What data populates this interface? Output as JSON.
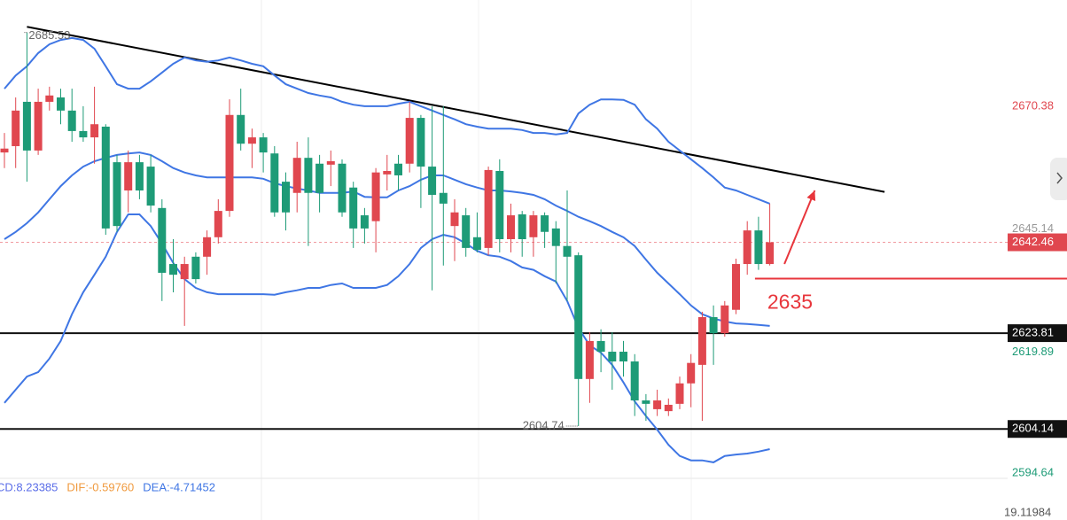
{
  "chart_data": {
    "type": "candlestick",
    "ylim": [
      2594.0,
      2692.2
    ],
    "up_color": "#e0474f",
    "down_color": "#1e9b77",
    "candles": {
      "open": [
        2660.9,
        2662.2,
        2671.3,
        2661.3,
        2671.3,
        2672.2,
        2669.5,
        2665.3,
        2664.0,
        2666.2,
        2658.9,
        2653.1,
        2658.9,
        2658.0,
        2649.5,
        2638.0,
        2634.9,
        2639.5,
        2639.5,
        2643.5,
        2648.9,
        2668.6,
        2662.7,
        2664.0,
        2660.7,
        2654.9,
        2652.6,
        2659.8,
        2658.6,
        2658.4,
        2658.6,
        2653.7,
        2648.0,
        2646.8,
        2656.4,
        2658.6,
        2658.6,
        2668.0,
        2658.0,
        2652.6,
        2645.8,
        2648.0,
        2643.5,
        2641.3,
        2657.1,
        2643.1,
        2648.2,
        2643.5,
        2648.0,
        2645.3,
        2641.7,
        2639.8,
        2614.4,
        2622.2,
        2620.0,
        2620.0,
        2618.0,
        2610.0,
        2608.2,
        2607.8,
        2609.3,
        2613.5,
        2617.3,
        2627.1,
        2623.8,
        2628.6,
        2638.0,
        2644.9,
        2638.0
      ],
      "high": [
        2664.9,
        2672.2,
        2685.53,
        2674.0,
        2674.4,
        2674.0,
        2674.0,
        2670.4,
        2674.4,
        2666.7,
        2660.4,
        2661.3,
        2660.4,
        2660.4,
        2651.3,
        2643.1,
        2639.5,
        2640.4,
        2644.9,
        2651.3,
        2671.8,
        2674.0,
        2665.8,
        2664.9,
        2662.2,
        2656.8,
        2663.1,
        2664.0,
        2660.4,
        2661.3,
        2659.5,
        2654.9,
        2649.5,
        2657.7,
        2660.4,
        2660.4,
        2671.3,
        2668.6,
        2670.4,
        2670.4,
        2651.3,
        2649.5,
        2648.6,
        2658.0,
        2659.5,
        2650.4,
        2648.9,
        2648.9,
        2648.6,
        2646.8,
        2653.1,
        2640.4,
        2624.0,
        2624.6,
        2624.0,
        2622.2,
        2619.5,
        2611.3,
        2612.2,
        2610.4,
        2614.9,
        2619.5,
        2628.2,
        2629.5,
        2630.4,
        2639.1,
        2646.8,
        2647.7,
        2650.4
      ],
      "low": [
        2657.7,
        2657.7,
        2654.9,
        2660.4,
        2669.5,
        2666.7,
        2663.1,
        2663.1,
        2658.6,
        2644.0,
        2644.6,
        2648.6,
        2651.3,
        2648.6,
        2630.4,
        2632.2,
        2625.3,
        2634.0,
        2635.8,
        2642.2,
        2647.7,
        2661.3,
        2657.7,
        2656.8,
        2647.7,
        2644.9,
        2648.6,
        2641.7,
        2648.6,
        2654.0,
        2647.7,
        2641.3,
        2642.2,
        2640.4,
        2653.1,
        2653.1,
        2656.8,
        2649.5,
        2632.6,
        2637.7,
        2638.6,
        2639.5,
        2640.4,
        2639.8,
        2640.4,
        2640.4,
        2639.5,
        2639.5,
        2641.3,
        2634.0,
        2630.4,
        2604.74,
        2609.5,
        2615.8,
        2612.2,
        2614.9,
        2606.8,
        2605.8,
        2606.8,
        2606.8,
        2608.2,
        2608.6,
        2605.8,
        2617.3,
        2623.1,
        2627.7,
        2635.8,
        2636.8,
        2637.7
      ],
      "close": [
        2661.7,
        2669.5,
        2661.3,
        2671.3,
        2672.6,
        2669.5,
        2665.3,
        2664.0,
        2666.7,
        2645.3,
        2645.8,
        2658.9,
        2653.1,
        2650.0,
        2636.2,
        2635.8,
        2638.0,
        2634.9,
        2643.5,
        2648.9,
        2668.6,
        2662.7,
        2664.0,
        2660.9,
        2648.6,
        2648.6,
        2659.8,
        2652.6,
        2652.6,
        2659.1,
        2648.6,
        2645.3,
        2645.3,
        2656.8,
        2657.1,
        2656.2,
        2668.0,
        2658.0,
        2652.2,
        2650.4,
        2648.6,
        2641.3,
        2640.9,
        2657.3,
        2643.1,
        2648.0,
        2643.1,
        2648.0,
        2644.6,
        2641.7,
        2639.5,
        2614.4,
        2622.2,
        2620.0,
        2618.0,
        2618.0,
        2610.0,
        2609.3,
        2610.0,
        2609.1,
        2613.5,
        2617.7,
        2627.1,
        2623.8,
        2629.5,
        2638.0,
        2644.9,
        2638.0,
        2642.46
      ]
    },
    "bollinger": {
      "color": "#3f76e4",
      "upper": [
        2674.0,
        2676.7,
        2678.6,
        2681.3,
        2683.1,
        2684.0,
        2684.4,
        2684.0,
        2682.2,
        2678.6,
        2674.9,
        2674.0,
        2674.0,
        2675.5,
        2677.3,
        2679.1,
        2680.4,
        2679.8,
        2679.5,
        2679.8,
        2680.4,
        2679.8,
        2679.1,
        2678.6,
        2676.7,
        2674.9,
        2674.0,
        2673.1,
        2672.6,
        2672.2,
        2671.3,
        2670.7,
        2670.4,
        2670.4,
        2670.4,
        2670.9,
        2671.3,
        2670.4,
        2669.5,
        2668.6,
        2667.7,
        2666.7,
        2666.2,
        2665.8,
        2665.8,
        2665.8,
        2665.5,
        2664.9,
        2664.9,
        2664.6,
        2664.9,
        2668.9,
        2670.7,
        2671.8,
        2671.8,
        2671.7,
        2670.7,
        2667.7,
        2665.8,
        2663.1,
        2661.3,
        2659.5,
        2657.7,
        2655.8,
        2653.7,
        2653.1,
        2652.2,
        2651.3,
        2650.4
      ],
      "middle": [
        2643.1,
        2644.6,
        2646.4,
        2648.6,
        2651.3,
        2654.0,
        2656.2,
        2658.0,
        2659.1,
        2659.8,
        2660.4,
        2660.7,
        2660.9,
        2660.4,
        2659.1,
        2657.7,
        2656.8,
        2656.2,
        2655.8,
        2655.8,
        2655.8,
        2655.8,
        2655.8,
        2655.5,
        2654.6,
        2654.0,
        2653.5,
        2653.1,
        2652.6,
        2652.6,
        2652.6,
        2652.9,
        2651.8,
        2651.7,
        2651.7,
        2653.1,
        2654.0,
        2655.3,
        2656.2,
        2656.2,
        2655.3,
        2654.4,
        2653.7,
        2653.1,
        2653.1,
        2652.9,
        2652.6,
        2652.2,
        2651.3,
        2650.0,
        2648.9,
        2647.7,
        2646.8,
        2645.8,
        2644.6,
        2643.5,
        2641.7,
        2638.9,
        2636.2,
        2634.0,
        2631.8,
        2629.5,
        2627.7,
        2626.8,
        2626.2,
        2625.8,
        2625.7,
        2625.5,
        2625.3
      ],
      "lower": [
        2609.5,
        2612.2,
        2614.9,
        2615.8,
        2618.6,
        2622.2,
        2627.7,
        2632.2,
        2635.8,
        2639.5,
        2644.6,
        2648.2,
        2648.2,
        2645.8,
        2642.2,
        2638.2,
        2634.9,
        2633.1,
        2632.2,
        2631.8,
        2631.8,
        2631.8,
        2631.8,
        2631.8,
        2631.7,
        2632.2,
        2632.6,
        2633.1,
        2633.1,
        2633.7,
        2634.0,
        2633.1,
        2633.1,
        2633.1,
        2633.7,
        2635.5,
        2638.0,
        2641.3,
        2643.1,
        2644.0,
        2643.5,
        2642.2,
        2640.7,
        2639.8,
        2639.5,
        2638.6,
        2637.3,
        2636.8,
        2635.5,
        2634.4,
        2630.4,
        2624.9,
        2621.3,
        2619.8,
        2617.3,
        2613.7,
        2609.8,
        2606.8,
        2604.0,
        2600.9,
        2598.6,
        2597.7,
        2597.7,
        2597.3,
        2598.6,
        2598.9,
        2599.1,
        2599.5,
        2600.0
      ]
    },
    "trendline": {
      "x": [
        2,
        78.2
      ],
      "y": [
        2686.7,
        2652.8
      ],
      "color": "#000000"
    },
    "current_price_line": {
      "color": "#f19aa0"
    },
    "price_labels": [
      {
        "value": 2670.38,
        "color": "#e0474f"
      },
      {
        "value": 2645.14,
        "color": "#999999"
      },
      {
        "value": 2642.46,
        "color": "#ffffff",
        "background": "#e0474f"
      },
      {
        "value": 2623.81,
        "color": "#ffffff",
        "background": "#111111",
        "line": "#111111"
      },
      {
        "value": 2619.89,
        "color": "#1e9b77"
      },
      {
        "value": 2604.14,
        "color": "#ffffff",
        "background": "#111111",
        "line": "#111111"
      },
      {
        "value": 2594.64,
        "color": "#1e9b77"
      }
    ],
    "support": {
      "value": 2635,
      "color": "#e8363c"
    },
    "arrow": {
      "x": [
        69.3,
        72.0
      ],
      "y": [
        2638.0,
        2653.1
      ],
      "color": "#e8363c"
    },
    "macd_labels": [
      {
        "text": "CD:8.23385",
        "color": "#5b6ee8"
      },
      {
        "text": "DIF:-0.59760",
        "color": "#f09a3e"
      },
      {
        "text": "DEA:-4.71452",
        "color": "#3f76e4"
      }
    ],
    "macd_axis_label": "19.11984"
  }
}
